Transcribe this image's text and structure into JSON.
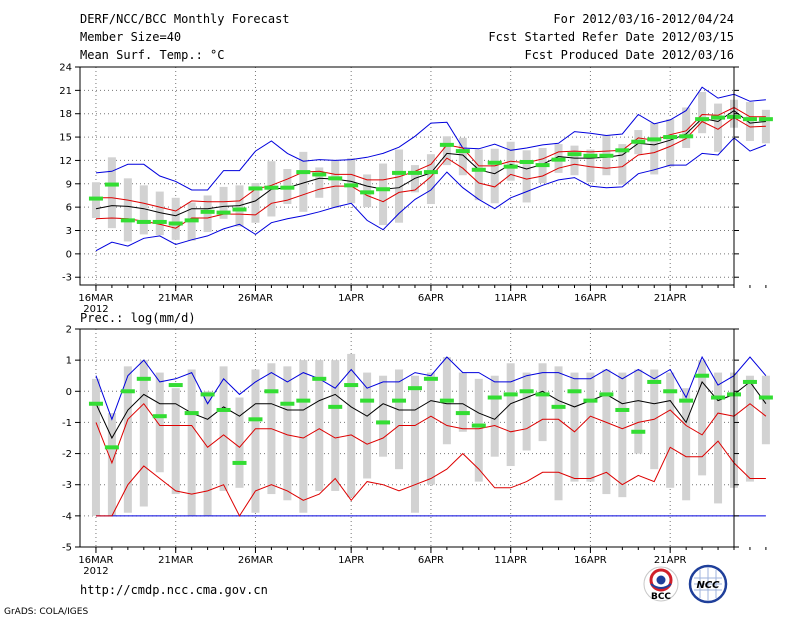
{
  "header": {
    "title": "DERF/NCC/BCC Monthly Forecast",
    "member_size": "Member Size=40",
    "variable": "Mean Surf. Temp.: °C",
    "period": "For 2012/03/16-2012/04/24",
    "started": "Fcst Started Refer Date 2012/03/15",
    "produced": "Fcst Produced Date 2012/03/16"
  },
  "footer": {
    "url": "http://cmdp.ncc.cma.gov.cn",
    "grads": "GrADS: COLA/IGES",
    "logo_bcc": "BCC",
    "logo_ncc": "NCC"
  },
  "colors": {
    "max": "#0000dd",
    "min": "#0000dd",
    "pct": "#dd0000",
    "mean": "#000000",
    "box": "#d2d2d2",
    "median": "#33dd33"
  },
  "chart_data": [
    {
      "type": "box",
      "title": "Mean Surf. Temp.: °C",
      "x_tick_labels": [
        "16MAR",
        "21MAR",
        "26MAR",
        "1APR",
        "6APR",
        "11APR",
        "16APR",
        "21APR"
      ],
      "x_tick_days": [
        1,
        6,
        11,
        17,
        22,
        27,
        32,
        37
      ],
      "year_label": "2012",
      "xlim": [
        0,
        41
      ],
      "ylim": [
        -4,
        24
      ],
      "yticks": [
        -3,
        0,
        3,
        6,
        9,
        12,
        15,
        18,
        21,
        24
      ],
      "series": [
        {
          "name": "max",
          "values": [
            0.4,
            1.5,
            1.0,
            2.0,
            2.3,
            1.2,
            1.8,
            2.3,
            3.2,
            3.8,
            2.5,
            4.0,
            4.5,
            4.9,
            5.4,
            6.0,
            6.5,
            4.3,
            3.1,
            5.2,
            7.0,
            8.2,
            10.5,
            8.5,
            7.0,
            5.8,
            7.2,
            8.0,
            8.8,
            9.5,
            9.8,
            8.7,
            8.5,
            8.6,
            10.3,
            10.8,
            11.4,
            11.4,
            12.9,
            12.7,
            14.9,
            13.2,
            14.0
          ]
        },
        {
          "name": "p90",
          "values": [
            4.5,
            4.6,
            4.5,
            4.2,
            3.8,
            3.3,
            4.6,
            4.6,
            5.1,
            5.1,
            5.0,
            6.5,
            6.9,
            7.6,
            8.3,
            8.7,
            8.7,
            7.5,
            6.7,
            7.9,
            8.2,
            9.9,
            12.3,
            11.0,
            9.1,
            8.6,
            10.2,
            9.6,
            10.0,
            11.0,
            11.5,
            11.2,
            11.0,
            11.2,
            12.7,
            13.0,
            13.8,
            14.8,
            17.0,
            16.0,
            17.5,
            16.3,
            16.4
          ]
        },
        {
          "name": "mean",
          "values": [
            5.8,
            6.2,
            6.1,
            5.8,
            5.3,
            4.9,
            5.8,
            5.8,
            6.1,
            6.2,
            6.8,
            8.3,
            8.5,
            9.1,
            9.7,
            9.6,
            9.3,
            8.7,
            8.3,
            8.5,
            9.7,
            10.4,
            12.9,
            12.7,
            10.8,
            10.3,
            11.5,
            10.9,
            11.5,
            12.5,
            12.3,
            12.3,
            12.4,
            12.7,
            14.2,
            14.0,
            14.6,
            15.4,
            17.4,
            17.0,
            18.4,
            16.8,
            17.0
          ]
        },
        {
          "name": "p10",
          "values": [
            7.2,
            7.2,
            6.9,
            6.5,
            6.0,
            5.5,
            6.8,
            6.7,
            6.7,
            6.8,
            8.3,
            8.8,
            9.6,
            10.5,
            10.6,
            10.2,
            10.2,
            9.5,
            9.5,
            9.9,
            10.6,
            11.5,
            14.0,
            13.6,
            11.3,
            11.3,
            11.9,
            11.7,
            12.2,
            13.1,
            13.2,
            13.1,
            13.2,
            13.3,
            14.9,
            14.6,
            15.3,
            15.8,
            17.9,
            17.8,
            18.8,
            17.6,
            17.6
          ]
        },
        {
          "name": "min",
          "values": [
            10.4,
            10.6,
            11.5,
            11.5,
            10.0,
            9.3,
            8.2,
            8.2,
            10.7,
            10.7,
            13.2,
            14.5,
            12.9,
            11.9,
            12.1,
            12.0,
            12.1,
            12.4,
            12.9,
            13.7,
            15.1,
            16.8,
            16.9,
            13.6,
            13.5,
            14.1,
            13.3,
            13.6,
            14.0,
            14.2,
            15.7,
            15.5,
            15.2,
            15.4,
            17.9,
            16.7,
            17.2,
            18.4,
            21.4,
            20.0,
            20.5,
            19.6,
            19.8
          ]
        },
        {
          "name": "box_lo",
          "values": [
            4.6,
            3.3,
            1.6,
            2.5,
            2.4,
            1.8,
            1.7,
            2.8,
            4.5,
            3.5,
            4.0,
            4.8,
            6.4,
            5.4,
            7.2,
            5.9,
            6.5,
            6.0,
            3.7,
            4.0,
            7.9,
            6.4,
            11.4,
            10.1,
            6.9,
            6.5,
            9.4,
            6.6,
            9.1,
            10.4,
            10.1,
            9.2,
            10.1,
            8.9,
            12.8,
            10.2,
            11.2,
            13.6,
            15.5,
            13.1,
            16.2,
            14.5,
            14.2
          ]
        },
        {
          "name": "box_hi",
          "values": [
            9.2,
            12.4,
            9.7,
            8.8,
            8.0,
            7.2,
            6.6,
            7.5,
            8.6,
            8.8,
            9.1,
            11.9,
            10.9,
            13.1,
            11.1,
            12.0,
            12.3,
            10.2,
            11.6,
            13.4,
            11.4,
            12.8,
            15.1,
            14.9,
            13.4,
            13.5,
            14.4,
            13.3,
            13.6,
            14.1,
            13.9,
            13.4,
            15.2,
            14.1,
            15.9,
            16.8,
            17.3,
            18.8,
            20.8,
            19.3,
            19.8,
            19.5,
            18.5
          ]
        },
        {
          "name": "median",
          "values": [
            7.1,
            8.9,
            4.3,
            4.1,
            4.1,
            3.9,
            4.3,
            5.4,
            5.3,
            5.7,
            8.4,
            8.5,
            8.5,
            10.5,
            10.2,
            9.7,
            8.8,
            7.9,
            8.3,
            10.4,
            10.4,
            10.5,
            14.0,
            13.2,
            10.8,
            11.7,
            11.2,
            11.8,
            11.4,
            12.1,
            12.8,
            12.6,
            12.6,
            13.3,
            14.4,
            14.7,
            15.0,
            15.1,
            17.3,
            17.5,
            17.6,
            17.3,
            17.3
          ]
        }
      ]
    },
    {
      "type": "box",
      "title": "Prec.: log(mm/d)",
      "x_tick_labels": [
        "16MAR",
        "21MAR",
        "26MAR",
        "1APR",
        "6APR",
        "11APR",
        "16APR",
        "21APR"
      ],
      "x_tick_days": [
        1,
        6,
        11,
        17,
        22,
        27,
        32,
        37
      ],
      "year_label": "2012",
      "xlim": [
        0,
        41
      ],
      "ylim": [
        -5,
        2
      ],
      "yticks": [
        -5,
        -4,
        -3,
        -2,
        -1,
        0,
        1,
        2
      ],
      "series": [
        {
          "name": "min",
          "values": [
            -4.0,
            -4.0,
            -4.0,
            -4.0,
            -4.0,
            -4.0,
            -4.0,
            -4.0,
            -4.0,
            -4.0,
            -4.0,
            -4.0,
            -4.0,
            -4.0,
            -4.0,
            -4.0,
            -4.0,
            -4.0,
            -4.0,
            -4.0,
            -4.0,
            -4.0,
            -4.0,
            -4.0,
            -4.0,
            -4.0,
            -4.0,
            -4.0,
            -4.0,
            -4.0,
            -4.0,
            -4.0,
            -4.0,
            -4.0,
            -4.0,
            -4.0,
            -4.0,
            -4.0,
            -4.0,
            -4.0,
            -4.0,
            -4.0,
            -4.0
          ]
        },
        {
          "name": "p10",
          "values": [
            -4.0,
            -4.0,
            -3.0,
            -2.4,
            -2.8,
            -3.2,
            -3.3,
            -3.2,
            -3.0,
            -4.0,
            -3.2,
            -3.0,
            -3.2,
            -3.5,
            -3.3,
            -2.8,
            -3.5,
            -2.9,
            -3.0,
            -3.2,
            -3.0,
            -2.8,
            -2.5,
            -2.0,
            -2.5,
            -3.1,
            -3.1,
            -2.9,
            -2.6,
            -2.6,
            -2.8,
            -2.8,
            -2.6,
            -3.0,
            -2.7,
            -2.9,
            -1.8,
            -2.1,
            -2.1,
            -1.6,
            -2.3,
            -2.8,
            -2.8
          ]
        },
        {
          "name": "p90",
          "values": [
            -1.0,
            -2.3,
            -0.9,
            -0.4,
            -1.1,
            -1.1,
            -1.1,
            -1.8,
            -1.4,
            -1.8,
            -1.2,
            -1.2,
            -1.4,
            -1.5,
            -1.2,
            -1.5,
            -1.4,
            -1.7,
            -1.5,
            -1.1,
            -1.1,
            -0.8,
            -1.1,
            -1.2,
            -1.2,
            -1.1,
            -1.3,
            -1.2,
            -0.9,
            -0.9,
            -1.3,
            -0.8,
            -1.0,
            -1.2,
            -1.0,
            -0.9,
            -0.6,
            -1.1,
            -1.4,
            -0.7,
            -0.8,
            -0.4,
            -0.8
          ]
        },
        {
          "name": "mean",
          "values": [
            -0.4,
            -1.5,
            -0.6,
            -0.1,
            -0.4,
            -0.4,
            -0.7,
            -0.9,
            -0.5,
            -0.8,
            -0.4,
            -0.4,
            -0.6,
            -0.6,
            -0.3,
            -0.1,
            -0.5,
            -0.8,
            -0.4,
            -0.6,
            -0.6,
            -0.3,
            -0.4,
            -0.4,
            -0.7,
            -0.9,
            -0.4,
            -0.2,
            -0.0,
            -0.3,
            -0.5,
            -0.3,
            -0.1,
            -0.4,
            -0.3,
            -0.4,
            -0.3,
            -1.0,
            0.3,
            -0.3,
            -0.1,
            0.3,
            -0.4
          ]
        },
        {
          "name": "max",
          "values": [
            0.5,
            -0.9,
            0.5,
            1.0,
            0.3,
            0.4,
            0.6,
            -0.4,
            0.4,
            -0.1,
            0.3,
            0.6,
            0.3,
            0.6,
            0.4,
            0.1,
            0.7,
            0.1,
            0.3,
            0.3,
            0.6,
            0.5,
            1.1,
            0.6,
            0.6,
            0.3,
            0.3,
            0.5,
            0.6,
            0.6,
            0.4,
            0.4,
            0.7,
            0.4,
            0.7,
            0.4,
            0.7,
            -0.2,
            1.1,
            0.2,
            0.5,
            1.1,
            0.5
          ]
        },
        {
          "name": "box_lo",
          "values": [
            -4.0,
            -4.0,
            -3.9,
            -3.7,
            -2.6,
            -3.3,
            -4.0,
            -4.0,
            -3.2,
            -3.1,
            -3.9,
            -3.3,
            -3.5,
            -3.9,
            -3.2,
            -3.2,
            -3.4,
            -2.8,
            -2.1,
            -2.5,
            -3.9,
            -3.0,
            -1.7,
            -1.3,
            -2.9,
            -2.1,
            -2.4,
            -1.9,
            -1.6,
            -3.5,
            -2.9,
            -2.9,
            -3.3,
            -3.4,
            -2.0,
            -2.5,
            -3.1,
            -3.5,
            -2.7,
            -3.6,
            -3.1,
            -2.9,
            -1.7
          ]
        },
        {
          "name": "box_hi",
          "values": [
            0.4,
            -0.7,
            0.8,
            1.0,
            0.6,
            0.1,
            0.7,
            -0.0,
            0.8,
            -0.2,
            0.7,
            0.9,
            0.8,
            1.0,
            1.0,
            1.0,
            1.2,
            0.6,
            0.5,
            0.7,
            0.5,
            0.6,
            1.1,
            0.6,
            0.4,
            0.5,
            0.9,
            0.6,
            0.9,
            0.8,
            0.6,
            0.6,
            0.7,
            0.6,
            0.7,
            0.7,
            0.6,
            0.1,
            1.0,
            0.6,
            0.6,
            0.5,
            0.5
          ]
        },
        {
          "name": "median",
          "values": [
            -0.4,
            -1.8,
            -0.0,
            0.4,
            -0.8,
            0.2,
            -0.7,
            -0.1,
            -0.6,
            -2.3,
            -0.9,
            -0.0,
            -0.4,
            -0.3,
            0.4,
            -0.5,
            0.2,
            -0.3,
            -1.0,
            -0.3,
            0.1,
            0.4,
            -0.3,
            -0.7,
            -1.1,
            -0.2,
            -0.1,
            0.0,
            -0.1,
            -0.5,
            0.0,
            -0.3,
            -0.1,
            -0.6,
            -1.3,
            0.3,
            0.0,
            -0.3,
            0.5,
            -0.2,
            -0.1,
            0.3,
            -0.2
          ]
        }
      ]
    }
  ]
}
